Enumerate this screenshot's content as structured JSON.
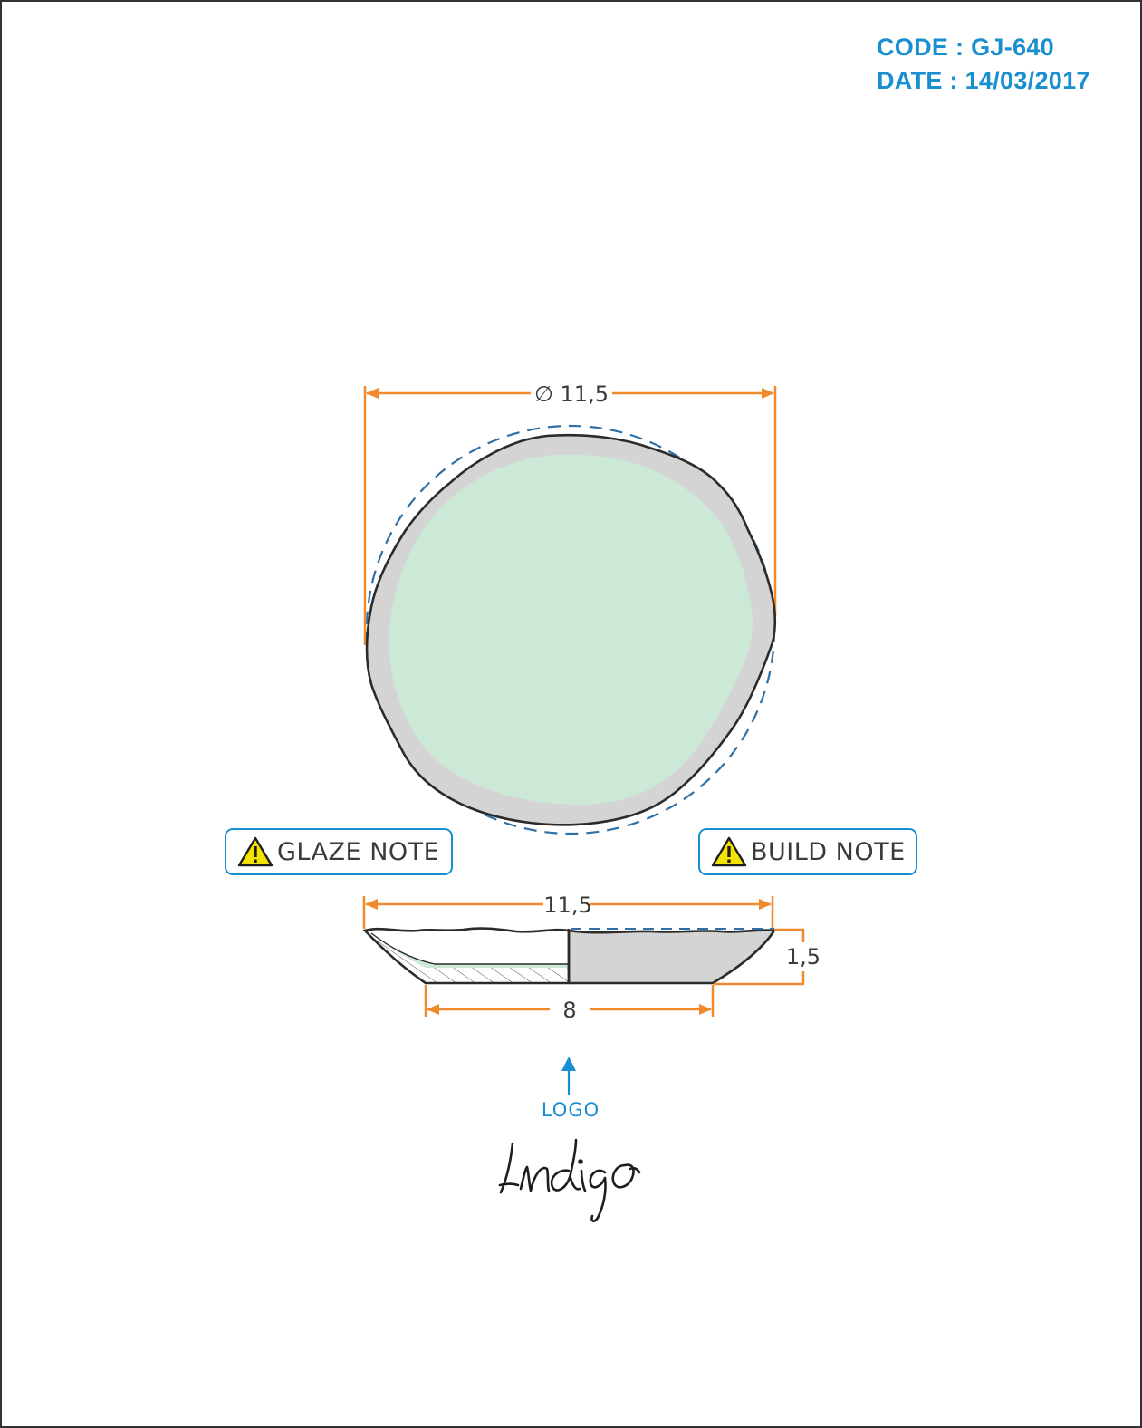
{
  "header": {
    "code": "CODE : GJ-640",
    "date": "DATE : 14/03/2017"
  },
  "colors": {
    "dimension": "#f08a2c",
    "accent": "#1a8fd0",
    "outline": "#2b2b2b",
    "rim_fill": "#d4d4d4",
    "glaze_fill": "#cce8d6",
    "warning": "#f3e300"
  },
  "top_view": {
    "diameter_label": "∅ 11,5"
  },
  "side_view": {
    "width_label": "11,5",
    "height_label": "1,5",
    "base_label": "8"
  },
  "notes": {
    "glaze": {
      "label": "GLAZE NOTE",
      "icon": "warning-icon"
    },
    "build": {
      "label": "BUILD NOTE",
      "icon": "warning-icon"
    }
  },
  "logo": {
    "label": "LOGO",
    "brand": "Indigo"
  }
}
